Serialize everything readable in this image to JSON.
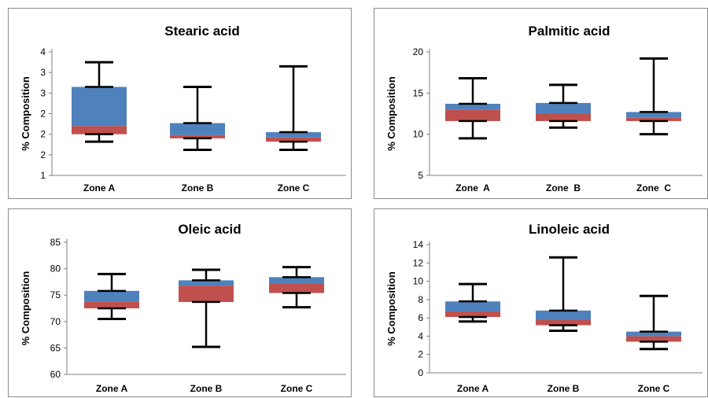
{
  "colors": {
    "upper_box": "#4f81bd",
    "lower_box": "#c0504d",
    "whisker": "#000000",
    "axis": "#808080"
  },
  "chart_data": [
    {
      "type": "box",
      "title": "Stearic acid",
      "ylabel": "% Composition",
      "ylim": [
        1,
        4
      ],
      "yticks": [
        1,
        1.5,
        2,
        2.5,
        3,
        3.5,
        4
      ],
      "ytick_labels": [
        "1",
        "2",
        "2",
        "2",
        "3",
        "3",
        "4"
      ],
      "categories": [
        "Zone A",
        "Zone B",
        "Zone C"
      ],
      "boxes": [
        {
          "min": 1.82,
          "q1": 2.0,
          "median": 2.2,
          "q3": 3.15,
          "max": 3.75
        },
        {
          "min": 1.62,
          "q1": 1.9,
          "median": 1.98,
          "q3": 2.27,
          "max": 3.15
        },
        {
          "min": 1.62,
          "q1": 1.82,
          "median": 1.92,
          "q3": 2.05,
          "max": 3.65
        }
      ]
    },
    {
      "type": "box",
      "title": "Palmitic acid",
      "ylabel": "% Composition",
      "ylim": [
        5,
        20
      ],
      "yticks": [
        5,
        10,
        15,
        20
      ],
      "ytick_labels": [
        "5",
        "10",
        "15",
        "20"
      ],
      "categories": [
        "Zone  A",
        "Zone  B",
        "Zone  C"
      ],
      "boxes": [
        {
          "min": 9.5,
          "q1": 11.6,
          "median": 13.0,
          "q3": 13.7,
          "max": 16.8
        },
        {
          "min": 10.8,
          "q1": 11.6,
          "median": 12.5,
          "q3": 13.8,
          "max": 16.0
        },
        {
          "min": 10.0,
          "q1": 11.6,
          "median": 12.0,
          "q3": 12.7,
          "max": 19.2
        }
      ]
    },
    {
      "type": "box",
      "title": "Oleic acid",
      "ylabel": "% Composition",
      "ylim": [
        60,
        85
      ],
      "yticks": [
        60,
        65,
        70,
        75,
        80,
        85
      ],
      "ytick_labels": [
        "60",
        "65",
        "70",
        "75",
        "80",
        "85"
      ],
      "categories": [
        "Zone A",
        "Zone B",
        "Zone C"
      ],
      "boxes": [
        {
          "min": 70.5,
          "q1": 72.5,
          "median": 73.8,
          "q3": 75.8,
          "max": 79.0
        },
        {
          "min": 65.2,
          "q1": 73.7,
          "median": 76.8,
          "q3": 77.8,
          "max": 79.8
        },
        {
          "min": 72.7,
          "q1": 75.4,
          "median": 77.2,
          "q3": 78.4,
          "max": 80.3
        }
      ]
    },
    {
      "type": "box",
      "title": "Linoleic acid",
      "ylabel": "% Composition",
      "ylim": [
        0,
        14
      ],
      "yticks": [
        0,
        2,
        4,
        6,
        8,
        10,
        12,
        14
      ],
      "ytick_labels": [
        "0",
        "2",
        "4",
        "6",
        "8",
        "10",
        "12",
        "14"
      ],
      "categories": [
        "Zone A",
        "Zone B",
        "Zone C"
      ],
      "boxes": [
        {
          "min": 5.6,
          "q1": 6.1,
          "median": 6.7,
          "q3": 7.8,
          "max": 9.7
        },
        {
          "min": 4.6,
          "q1": 5.2,
          "median": 5.8,
          "q3": 6.8,
          "max": 12.6
        },
        {
          "min": 2.6,
          "q1": 3.4,
          "median": 4.0,
          "q3": 4.5,
          "max": 8.4
        }
      ]
    }
  ]
}
